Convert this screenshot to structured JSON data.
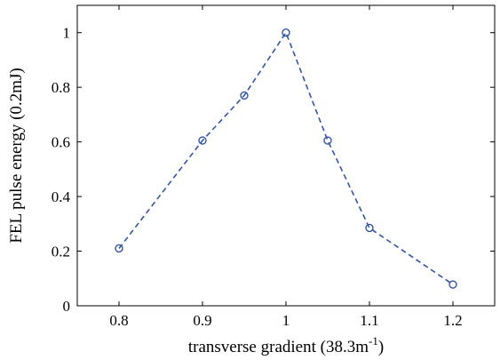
{
  "chart_data": {
    "type": "line",
    "title": "",
    "xlabel_main": "transverse gradient (38.3m",
    "xlabel_sup": "-1",
    "xlabel_end": ")",
    "ylabel": "FEL pulse energy (0.2mJ)",
    "xlim": [
      0.75,
      1.25
    ],
    "ylim": [
      0,
      1.1
    ],
    "xticks": [
      0.8,
      0.9,
      1,
      1.1,
      1.2
    ],
    "xtick_labels": [
      "0.8",
      "0.9",
      "1",
      "1.1",
      "1.2"
    ],
    "yticks": [
      0,
      0.2,
      0.4,
      0.6,
      0.8,
      1
    ],
    "ytick_labels": [
      "0",
      "0.2",
      "0.4",
      "0.6",
      "0.8",
      "1"
    ],
    "grid": false,
    "series": [
      {
        "x": [
          0.8,
          0.9,
          0.95,
          1.0,
          1.05,
          1.1,
          1.2
        ],
        "y": [
          0.21,
          0.605,
          0.77,
          1.0,
          0.605,
          0.285,
          0.078
        ],
        "color": "#3355a5",
        "line_style": "dashed",
        "marker": "circle-open"
      }
    ]
  }
}
